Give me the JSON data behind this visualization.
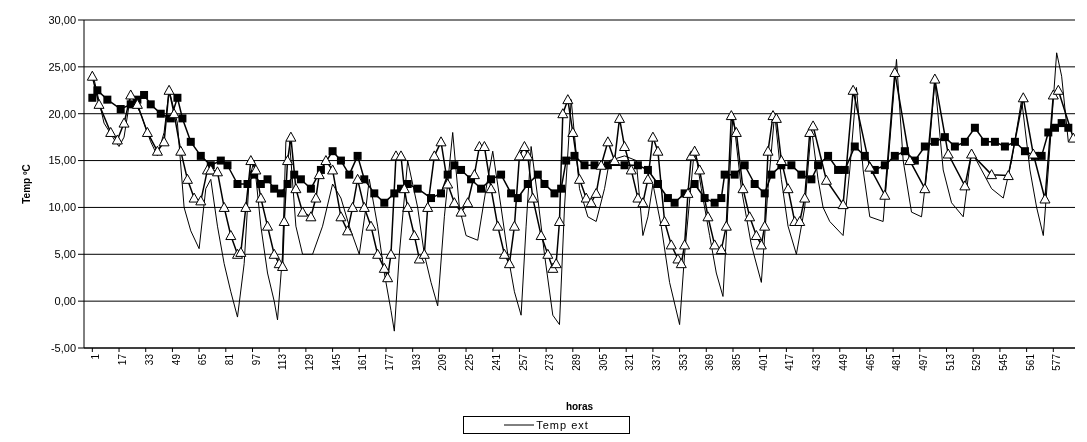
{
  "chart_data": {
    "type": "line",
    "xlabel": "horas",
    "ylabel": "Temp ºC",
    "xlim": [
      -4,
      590
    ],
    "xticks": [
      1,
      17,
      33,
      49,
      65,
      81,
      97,
      113,
      129,
      145,
      161,
      177,
      193,
      209,
      225,
      241,
      257,
      273,
      289,
      305,
      321,
      337,
      353,
      369,
      385,
      401,
      417,
      433,
      449,
      465,
      481,
      497,
      513,
      529,
      545,
      561,
      577
    ],
    "ylim": [
      -5,
      30
    ],
    "yticks": [
      {
        "value": -5,
        "label": "-5,00"
      },
      {
        "value": 0,
        "label": "0,00"
      },
      {
        "value": 5,
        "label": "5,00"
      },
      {
        "value": 10,
        "label": "10,00"
      },
      {
        "value": 15,
        "label": "15,00"
      },
      {
        "value": 20,
        "label": "20,00"
      },
      {
        "value": 25,
        "label": "25,00"
      },
      {
        "value": 30,
        "label": "30,00"
      }
    ],
    "grid": "y",
    "legend": "bottom",
    "line_style": "solid",
    "series": [
      {
        "color": "#000000",
        "marker": "triangle",
        "x": [
          1,
          5,
          12,
          16,
          20,
          24,
          28,
          34,
          40,
          44,
          47,
          50,
          54,
          58,
          62,
          66,
          70,
          72,
          76,
          80,
          84,
          88,
          90,
          93,
          96,
          99,
          102,
          106,
          110,
          113,
          115,
          116,
          118,
          120,
          123,
          127,
          132,
          135,
          137,
          141,
          145,
          150,
          154,
          157,
          160,
          164,
          168,
          172,
          176,
          178,
          180,
          183,
          186,
          188,
          190,
          194,
          197,
          200,
          202,
          206,
          210,
          214,
          218,
          222,
          226,
          230,
          233,
          236,
          240,
          244,
          248,
          251,
          254,
          257,
          260,
          262,
          265,
          270,
          274,
          277,
          279,
          281,
          283,
          286,
          289,
          293,
          297,
          300,
          303,
          306,
          310,
          314,
          317,
          320,
          324,
          328,
          331,
          334,
          337,
          340,
          344,
          348,
          352,
          354,
          356,
          358,
          360,
          362,
          365,
          370,
          374,
          378,
          381,
          384,
          387,
          391,
          395,
          399,
          402,
          404,
          406,
          409,
          411,
          414,
          418,
          422,
          425,
          428,
          431,
          433,
          441,
          451,
          457,
          467,
          476,
          482,
          491,
          500,
          506,
          514,
          524,
          528,
          540,
          550,
          559,
          565,
          572,
          577,
          580,
          589
        ],
        "values": [
          24,
          21,
          18,
          17.2,
          19,
          22,
          21,
          18,
          16,
          17,
          22.5,
          20,
          16,
          13,
          11,
          10.7,
          14,
          14,
          13.8,
          10,
          7,
          5,
          5.2,
          10,
          15,
          14,
          11,
          8,
          5,
          4,
          3.7,
          8.5,
          15,
          17.5,
          12,
          9.5,
          9,
          11,
          13.5,
          15,
          14,
          9,
          7.5,
          10,
          13,
          10,
          8,
          5,
          3.5,
          2.5,
          5,
          15.5,
          15.5,
          12,
          10,
          7,
          4.5,
          5,
          10,
          15.5,
          17,
          12.5,
          10.5,
          9.5,
          10.5,
          13.5,
          16.5,
          16.5,
          12,
          8,
          5,
          4,
          8,
          15.5,
          16.5,
          15.5,
          11,
          7,
          5,
          3.5,
          4,
          8.5,
          20,
          21.5,
          18,
          13,
          11,
          10.5,
          11.5,
          14.5,
          17,
          15,
          19.5,
          16.5,
          14,
          11,
          10.5,
          13,
          17.5,
          16,
          8.5,
          6,
          4.5,
          4,
          6,
          11.5,
          15.5,
          16,
          14,
          9,
          6,
          5.5,
          8,
          19.8,
          18,
          12,
          9,
          7,
          6,
          8,
          16,
          19.8,
          19.5,
          15,
          12,
          8.5,
          8.5,
          11,
          18,
          18.7,
          12.9,
          10.3,
          22.5,
          14.3,
          11.3,
          24.4,
          15,
          12,
          23.7,
          15.7,
          12.3,
          15.7,
          13.5,
          13.4,
          21.7,
          15.7,
          10.9,
          22,
          22.5,
          17.4
        ]
      },
      {
        "color": "#000000",
        "marker": "square",
        "x": [
          1,
          4,
          10,
          18,
          24,
          28,
          32,
          36,
          42,
          48,
          52,
          55,
          60,
          66,
          72,
          78,
          82,
          88,
          94,
          98,
          102,
          106,
          110,
          114,
          118,
          122,
          126,
          132,
          138,
          145,
          150,
          155,
          160,
          164,
          170,
          176,
          182,
          186,
          190,
          196,
          204,
          210,
          214,
          218,
          222,
          228,
          234,
          240,
          246,
          252,
          256,
          262,
          268,
          272,
          278,
          282,
          285,
          290,
          296,
          302,
          310,
          320,
          328,
          334,
          340,
          346,
          350,
          356,
          362,
          368,
          374,
          378,
          380,
          386,
          392,
          398,
          404,
          408,
          414,
          420,
          426,
          432,
          436,
          442,
          448,
          452,
          458,
          464,
          470,
          476,
          482,
          488,
          494,
          500,
          506,
          512,
          518,
          524,
          530,
          536,
          542,
          548,
          554,
          560,
          566,
          570,
          574,
          578,
          582,
          586
        ],
        "values": [
          21.7,
          22.5,
          21.5,
          20.5,
          21,
          21.5,
          22,
          21,
          20,
          19.5,
          21.7,
          19.5,
          17,
          15.5,
          14.5,
          15,
          14.5,
          12.5,
          12.5,
          13.5,
          12.5,
          13,
          12,
          11.5,
          12.5,
          13.5,
          13,
          12,
          14,
          16,
          15,
          13.5,
          15.5,
          13,
          11.5,
          10.5,
          11.5,
          12,
          12.5,
          12,
          11,
          11.5,
          13.5,
          14.5,
          14,
          13,
          12,
          13,
          13.5,
          11.5,
          11,
          12.5,
          13.5,
          12.5,
          11.5,
          12,
          15,
          15.5,
          14.5,
          14.5,
          14.5,
          14.5,
          14.5,
          14,
          12.5,
          11,
          10.5,
          11.5,
          12.5,
          11,
          10.5,
          11,
          13.5,
          13.5,
          14.5,
          12.5,
          11.5,
          13.5,
          14.5,
          14.5,
          13.5,
          13,
          14.5,
          15.5,
          14,
          14,
          16.5,
          15.5,
          14,
          14.5,
          15.5,
          16,
          15,
          16.5,
          17,
          17.5,
          16.5,
          17,
          18.5,
          17,
          17,
          16.5,
          17,
          16,
          15.5,
          15.5,
          18,
          18.5,
          19,
          18.5
        ]
      },
      {
        "name": "Temp ext",
        "color": "#000000",
        "marker": "none",
        "x": [
          1,
          8,
          15,
          17,
          20,
          24,
          30,
          36,
          40,
          44,
          47,
          52,
          56,
          60,
          65,
          69,
          72,
          76,
          80,
          84,
          88,
          92,
          95,
          98,
          102,
          106,
          110,
          112,
          115,
          117,
          119,
          123,
          127,
          133,
          139,
          145,
          150,
          155,
          161,
          165,
          167,
          172,
          176,
          180,
          182,
          185,
          190,
          196,
          200,
          204,
          208,
          212,
          217,
          221,
          225,
          232,
          237,
          241,
          246,
          250,
          254,
          258,
          261,
          264,
          268,
          272,
          277,
          281,
          284,
          288,
          293,
          298,
          303,
          308,
          311,
          320,
          327,
          331,
          334,
          337,
          342,
          347,
          353,
          356,
          362,
          366,
          371,
          375,
          379,
          382,
          385,
          390,
          396,
          402,
          406,
          410,
          414,
          418,
          423,
          428,
          432,
          436,
          439,
          443,
          451,
          455,
          459,
          463,
          467,
          475,
          479,
          483,
          487,
          492,
          498,
          502,
          506,
          511,
          516,
          523,
          528,
          534,
          540,
          547,
          552,
          558,
          563,
          567,
          571,
          574,
          579,
          582,
          586
        ],
        "values": [
          24.5,
          19,
          17,
          16.5,
          17.5,
          22,
          20,
          17,
          15.5,
          18,
          22.5,
          19,
          10,
          7.5,
          5.6,
          12,
          13,
          8,
          4,
          1,
          -1.7,
          4,
          13,
          15,
          8,
          3,
          0,
          -2,
          5,
          17,
          17.5,
          8,
          5,
          5,
          8,
          12.5,
          11,
          8,
          5,
          10,
          13,
          8,
          3,
          -1,
          -3.2,
          5,
          15,
          10,
          5,
          2,
          -0.5,
          9,
          18,
          10,
          7,
          6.5,
          12,
          16,
          10,
          5,
          1,
          -1.5,
          8,
          16.5,
          11,
          5,
          -1.5,
          -2.5,
          10,
          21.5,
          12,
          9,
          8.5,
          12,
          15,
          15.5,
          15,
          7,
          9,
          12.5,
          8,
          2,
          -2.5,
          5,
          16.5,
          12,
          7,
          3,
          0.5,
          10,
          20,
          12,
          6,
          2,
          12,
          20,
          13,
          8,
          5,
          10,
          18.5,
          13,
          10,
          8.5,
          7,
          14,
          22.8,
          14,
          9,
          8.5,
          17,
          25.8,
          15,
          9.5,
          9,
          15,
          23.5,
          14,
          10.5,
          9,
          16,
          14,
          12,
          11,
          15,
          21.5,
          14,
          10,
          7,
          14,
          26.5,
          24,
          17
        ]
      }
    ]
  }
}
